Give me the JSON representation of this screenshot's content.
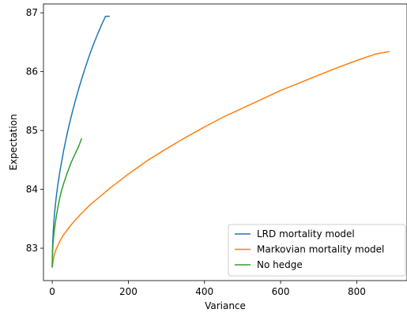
{
  "chart_data": {
    "type": "line",
    "title": "",
    "xlabel": "Variance",
    "ylabel": "Expectation",
    "xlim": [
      -23,
      932
    ],
    "ylim": [
      82.45,
      87.15
    ],
    "xticks": [
      0,
      200,
      400,
      600,
      800
    ],
    "xtick_labels": [
      "0",
      "200",
      "400",
      "600",
      "800"
    ],
    "yticks": [
      83,
      84,
      85,
      86,
      87
    ],
    "ytick_labels": [
      "83",
      "84",
      "85",
      "86",
      "87"
    ],
    "grid": false,
    "legend_position": "lower-right",
    "series": [
      {
        "name": "LRD mortality model",
        "color": "#1f77b4",
        "x": [
          0,
          1,
          3,
          6,
          10,
          15,
          20,
          30,
          40,
          50,
          60,
          70,
          80,
          90,
          100,
          110,
          120,
          130,
          140,
          150
        ],
        "y": [
          82.68,
          83.05,
          83.33,
          83.59,
          83.84,
          84.09,
          84.3,
          84.66,
          84.97,
          85.24,
          85.49,
          85.72,
          85.93,
          86.13,
          86.32,
          86.49,
          86.65,
          86.8,
          86.94,
          86.94
        ]
      },
      {
        "name": "Markovian mortality model",
        "color": "#ff7f0e",
        "x": [
          0,
          5,
          10,
          20,
          30,
          50,
          75,
          100,
          150,
          200,
          250,
          300,
          350,
          400,
          450,
          500,
          550,
          600,
          650,
          700,
          750,
          800,
          850,
          885
        ],
        "y": [
          82.68,
          82.88,
          82.98,
          83.12,
          83.23,
          83.4,
          83.58,
          83.74,
          84.01,
          84.26,
          84.49,
          84.69,
          84.88,
          85.06,
          85.23,
          85.38,
          85.53,
          85.68,
          85.81,
          85.94,
          86.07,
          86.19,
          86.3,
          86.34
        ]
      },
      {
        "name": "No hedge",
        "color": "#2ca02c",
        "x": [
          0,
          1,
          2,
          4,
          6,
          10,
          15,
          20,
          25,
          30,
          40,
          50,
          60,
          70,
          77
        ],
        "y": [
          82.68,
          82.96,
          83.07,
          83.22,
          83.33,
          83.51,
          83.7,
          83.86,
          83.99,
          84.1,
          84.29,
          84.46,
          84.6,
          84.74,
          84.86
        ]
      }
    ]
  }
}
